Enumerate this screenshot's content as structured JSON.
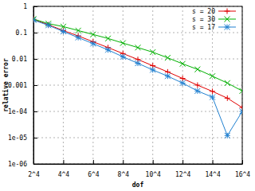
{
  "chart_data": {
    "type": "line",
    "x_label": "dof",
    "y_label": "relative error",
    "x": [
      16,
      81,
      256,
      625,
      1296,
      2401,
      4096,
      6561,
      10000,
      14641,
      20736,
      28561,
      38416,
      50625,
      65536
    ],
    "series": [
      {
        "name": "s = 20",
        "color": "#e00000",
        "marker": "plus",
        "values": [
          0.32,
          0.2,
          0.12,
          0.075,
          0.045,
          0.027,
          0.016,
          0.0095,
          0.0055,
          0.0032,
          0.0018,
          0.001,
          0.00058,
          0.00032,
          0.00014
        ]
      },
      {
        "name": "s = 30",
        "color": "#00b000",
        "marker": "cross",
        "values": [
          0.33,
          0.22,
          0.17,
          0.12,
          0.085,
          0.06,
          0.04,
          0.027,
          0.018,
          0.011,
          0.0065,
          0.004,
          0.0022,
          0.0012,
          0.0006
        ]
      },
      {
        "name": "s = 17",
        "color": "#2080d0",
        "marker": "star",
        "values": [
          0.3,
          0.19,
          0.11,
          0.065,
          0.038,
          0.022,
          0.012,
          0.0068,
          0.0038,
          0.0022,
          0.0012,
          0.0006,
          0.00035,
          1.2e-05,
          0.0001
        ]
      }
    ],
    "xlim": [
      16,
      65536
    ],
    "xticks": [
      {
        "value": 16,
        "label": "2^4"
      },
      {
        "value": 256,
        "label": "4^4"
      },
      {
        "value": 1296,
        "label": "6^4"
      },
      {
        "value": 4096,
        "label": "8^4"
      },
      {
        "value": 10000,
        "label": "10^4"
      },
      {
        "value": 20736,
        "label": "12^4"
      },
      {
        "value": 38416,
        "label": "14^4"
      },
      {
        "value": 65536,
        "label": "16^4"
      }
    ],
    "ylim": [
      1e-06,
      1
    ],
    "yticks": [
      {
        "value": 1e-06,
        "label": "1e-06"
      },
      {
        "value": 1e-05,
        "label": "1e-05"
      },
      {
        "value": 0.0001,
        "label": "1e-04"
      },
      0.001,
      0.01,
      0.1,
      1
    ],
    "log": "y",
    "grid": true,
    "legend": "top-right"
  }
}
